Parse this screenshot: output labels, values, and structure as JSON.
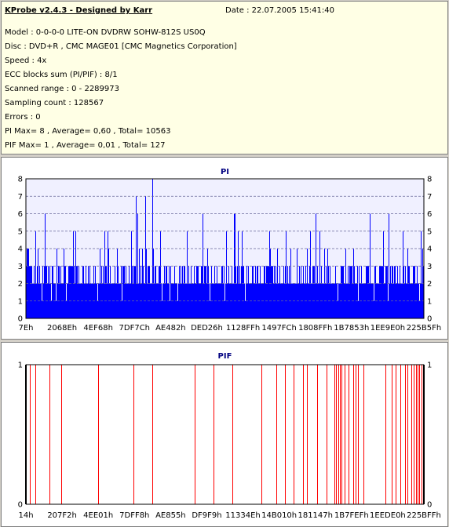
{
  "header": {
    "title": "KProbe v2.4.3 - Designed by Karr",
    "date": "Date : 22.07.2005 15:41:40",
    "lines": [
      "Model : 0-0-0-0 LITE-ON DVDRW SOHW-812S  US0Q",
      "Disc : DVD+R , CMC MAGE01 [CMC Magnetics Corporation]",
      "Speed : 4x",
      "ECC blocks sum (PI/PIF) : 8/1",
      "Scanned range : 0 - 2289973",
      "Sampling count : 128567",
      "Errors : 0",
      "PI Max= 8 , Average= 0,60 , Total= 10563",
      "PIF Max= 1 , Average= 0,01 , Total= 127"
    ]
  },
  "colors": {
    "pi_bar": "#0000ff",
    "pif_bar": "#ff0000",
    "plot_background": "#f0f0ff",
    "grid": "#666699",
    "title_text": "#000080"
  },
  "chart_data": [
    {
      "type": "bar",
      "title": "PI",
      "ylim": [
        0,
        8
      ],
      "yticks": [
        0,
        1,
        2,
        3,
        4,
        5,
        6,
        7,
        8
      ],
      "grid": true,
      "xtick_labels": [
        "7Eh",
        "2068Eh",
        "4EF68h",
        "7DF7Ch",
        "AE482h",
        "DED26h",
        "1128FFh",
        "1497FCh",
        "1808FFh",
        "1B7853h",
        "1EE9E0h",
        "225B5Fh"
      ],
      "xlim": [
        126,
        2251615
      ],
      "baseline_range": [
        2,
        3
      ],
      "spike_values": [
        4,
        5,
        6,
        8
      ],
      "series": [
        {
          "values_summary": "dense PI bars: most samples between 2 and 3, frequent spikes to 4-6, peaks of 7 and 8 near AE482h",
          "peak_points": [
            {
              "x": 622000,
              "y": 7
            },
            {
              "x": 673000,
              "y": 7
            },
            {
              "x": 715000,
              "y": 8
            },
            {
              "x": 1000000,
              "y": 6
            },
            {
              "x": 1640000,
              "y": 6
            },
            {
              "x": 2050000,
              "y": 6
            }
          ]
        }
      ]
    },
    {
      "type": "bar",
      "title": "PIF",
      "ylim": [
        0,
        1
      ],
      "yticks": [
        0,
        1
      ],
      "grid": false,
      "xtick_labels": [
        "14h",
        "207F2h",
        "4EE01h",
        "7DFF8h",
        "AE855h",
        "DF9F9h",
        "11334Eh",
        "14B010h",
        "181147h",
        "1B7FEFh",
        "1EEDE0h",
        "225BFFh"
      ],
      "xlim": [
        20,
        2251775
      ],
      "series": [
        {
          "values_summary": "isolated PIF bars of height 1, denser toward the end of the disc",
          "positions": [
            5,
            12,
            30,
            45,
            92,
            136,
            160,
            214,
            238,
            262,
            299,
            318,
            329,
            340,
            352,
            357,
            370,
            381,
            391,
            393,
            396,
            398,
            400,
            404,
            409,
            415,
            418,
            421,
            428,
            456,
            464,
            469,
            475,
            481,
            484,
            489,
            492,
            495,
            497,
            499,
            502,
            505
          ],
          "positions_scale": [
            0,
            505
          ],
          "value": 1
        }
      ]
    }
  ]
}
